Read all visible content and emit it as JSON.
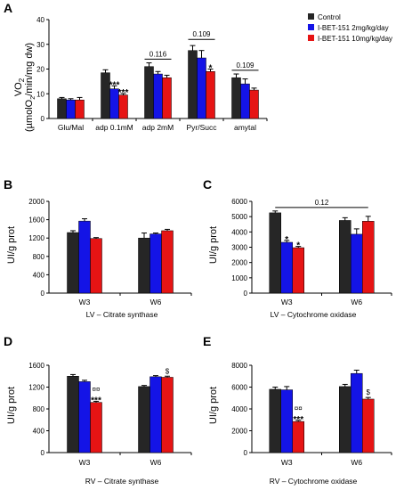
{
  "colors": {
    "control": "#262626",
    "low": "#1414e6",
    "high": "#e61414"
  },
  "chart_data": [
    {
      "panel": "A",
      "type": "bar",
      "ylabel_main": "VO",
      "ylabel_sub": "2",
      "ylabel_unit_a": "(µmolO",
      "ylabel_unit_sub": "2",
      "ylabel_unit_b": "/min/mg dw)",
      "ylim": [
        0,
        40
      ],
      "yticks": [
        "0",
        "10",
        "20",
        "30",
        "40"
      ],
      "categories": [
        "Glu/Mal",
        "adp 0.1mM",
        "adp 2mM",
        "Pyr/Succ",
        "amytal"
      ],
      "series": [
        {
          "name": "Control",
          "values": [
            8,
            18.5,
            21,
            27.5,
            16.5
          ],
          "errors": [
            0.5,
            1.2,
            1.5,
            2,
            1.5
          ]
        },
        {
          "name": "I-BET-151 2mg/kg/day",
          "values": [
            7.5,
            12,
            18,
            24.5,
            14
          ],
          "errors": [
            0.5,
            1.2,
            1,
            3,
            2
          ]
        },
        {
          "name": "I-BET-151 10mg/kg/day",
          "values": [
            7.5,
            9.5,
            16.5,
            19,
            11.5
          ],
          "errors": [
            1,
            0.6,
            1,
            1,
            0.8
          ]
        }
      ],
      "annotations": [
        {
          "cat": 1,
          "series": 1,
          "text": "***"
        },
        {
          "cat": 1,
          "series": 2,
          "text": "***"
        },
        {
          "cat": 3,
          "series": 2,
          "text": "*"
        }
      ],
      "brackets": [
        {
          "cat": 2,
          "from": 0,
          "to": 2,
          "y": 24,
          "text": "0.116"
        },
        {
          "cat": 3,
          "from": 0,
          "to": 2,
          "y": 32,
          "text": "0.109"
        },
        {
          "cat": 4,
          "from": 0,
          "to": 2,
          "y": 19.5,
          "text": "0.109"
        }
      ]
    },
    {
      "panel": "B",
      "type": "bar",
      "ylabel": "UI/g prot",
      "xlabel": "LV – Citrate synthase",
      "ylim": [
        0,
        2000
      ],
      "yticks": [
        "0",
        "400",
        "800",
        "1200",
        "1600",
        "2000"
      ],
      "categories": [
        "W3",
        "W6"
      ],
      "series": [
        {
          "name": "Control",
          "values": [
            1320,
            1200
          ],
          "errors": [
            40,
            110
          ]
        },
        {
          "name": "I-BET-151 2mg/kg/day",
          "values": [
            1570,
            1290
          ],
          "errors": [
            50,
            20
          ]
        },
        {
          "name": "I-BET-151 10mg/kg/day",
          "values": [
            1190,
            1360
          ],
          "errors": [
            20,
            30
          ]
        }
      ],
      "annotations": [],
      "brackets": []
    },
    {
      "panel": "C",
      "type": "bar",
      "ylabel": "UI/g prot",
      "xlabel": "LV – Cytochrome oxidase",
      "ylim": [
        0,
        6000
      ],
      "yticks": [
        "0",
        "1000",
        "2000",
        "3000",
        "4000",
        "5000",
        "6000"
      ],
      "categories": [
        "W3",
        "W6"
      ],
      "series": [
        {
          "name": "Control",
          "values": [
            5250,
            4750
          ],
          "errors": [
            120,
            180
          ]
        },
        {
          "name": "I-BET-151 2mg/kg/day",
          "values": [
            3320,
            3850
          ],
          "errors": [
            120,
            350
          ]
        },
        {
          "name": "I-BET-151 10mg/kg/day",
          "values": [
            2970,
            4700
          ],
          "errors": [
            80,
            320
          ]
        }
      ],
      "annotations": [
        {
          "cat": 0,
          "series": 1,
          "text": "*"
        },
        {
          "cat": 0,
          "series": 2,
          "text": "*"
        }
      ],
      "brackets": [
        {
          "span": [
            0,
            1
          ],
          "y": 5600,
          "text": "0.12"
        }
      ]
    },
    {
      "panel": "D",
      "type": "bar",
      "ylabel": "UI/g prot",
      "xlabel": "RV – Citrate synthase",
      "ylim": [
        0,
        1600
      ],
      "yticks": [
        "0",
        "400",
        "800",
        "1200",
        "1600"
      ],
      "categories": [
        "W3",
        "W6"
      ],
      "series": [
        {
          "name": "Control",
          "values": [
            1400,
            1210
          ],
          "errors": [
            30,
            20
          ]
        },
        {
          "name": "I-BET-151 2mg/kg/day",
          "values": [
            1300,
            1390
          ],
          "errors": [
            25,
            20
          ]
        },
        {
          "name": "I-BET-151 10mg/kg/day",
          "values": [
            920,
            1380
          ],
          "errors": [
            20,
            20
          ]
        }
      ],
      "annotations": [
        {
          "cat": 0,
          "series": 2,
          "text": "***"
        },
        {
          "cat": 0,
          "series": 2,
          "text": "¤¤",
          "level": 2
        },
        {
          "cat": 1,
          "series": 2,
          "text": "$"
        }
      ],
      "brackets": []
    },
    {
      "panel": "E",
      "type": "bar",
      "ylabel": "UI/g prot",
      "xlabel": "RV – Cytochrome oxidase",
      "ylim": [
        0,
        8000
      ],
      "yticks": [
        "0",
        "2000",
        "4000",
        "6000",
        "8000"
      ],
      "categories": [
        "W3",
        "W6"
      ],
      "series": [
        {
          "name": "Control",
          "values": [
            5800,
            6050
          ],
          "errors": [
            200,
            200
          ]
        },
        {
          "name": "I-BET-151 2mg/kg/day",
          "values": [
            5750,
            7250
          ],
          "errors": [
            300,
            300
          ]
        },
        {
          "name": "I-BET-151 10mg/kg/day",
          "values": [
            2850,
            4900
          ],
          "errors": [
            100,
            150
          ]
        }
      ],
      "annotations": [
        {
          "cat": 0,
          "series": 2,
          "text": "***"
        },
        {
          "cat": 0,
          "series": 2,
          "text": "¤¤",
          "level": 2
        },
        {
          "cat": 1,
          "series": 2,
          "text": "$"
        }
      ],
      "brackets": []
    }
  ],
  "legend": {
    "items": [
      "Control",
      "I-BET-151 2mg/kg/day",
      "I-BET-151 10mg/kg/day"
    ]
  }
}
